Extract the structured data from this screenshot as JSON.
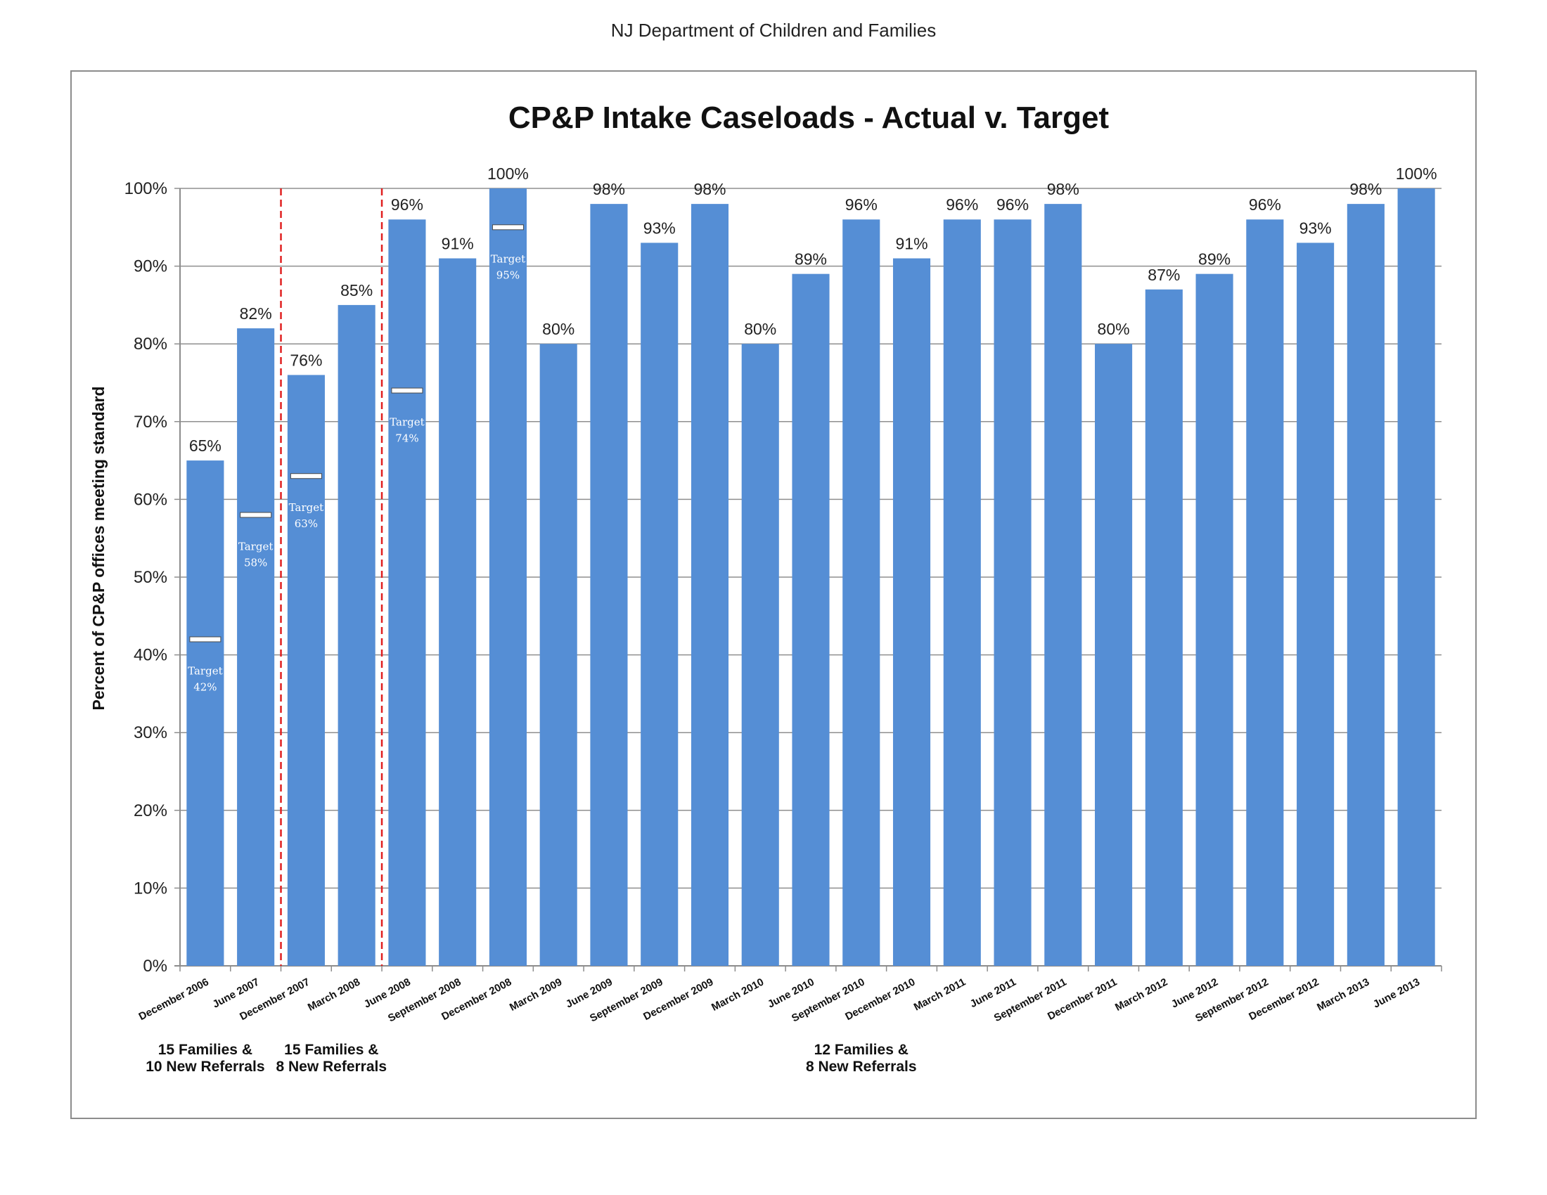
{
  "header": {
    "text": "NJ Department of Children and Families"
  },
  "chart_data": {
    "type": "bar",
    "title": "CP&P Intake Caseloads - Actual v. Target",
    "xlabel": "",
    "ylabel": "Percent of CP&P offices meeting standard",
    "ylim": [
      0,
      100
    ],
    "yticks": [
      "0%",
      "10%",
      "20%",
      "30%",
      "40%",
      "50%",
      "60%",
      "70%",
      "80%",
      "90%",
      "100%"
    ],
    "grid": "horizontal",
    "bar_color": "#558ed5",
    "target_marker_color": "#ffffff",
    "divider_color": "#e02020",
    "categories": [
      "December 2006",
      "June 2007",
      "December 2007",
      "March 2008",
      "June 2008",
      "September 2008",
      "December 2008",
      "March 2009",
      "June 2009",
      "September 2009",
      "December 2009",
      "March 2010",
      "June 2010",
      "September 2010",
      "December 2010",
      "March 2011",
      "June 2011",
      "September 2011",
      "December 2011",
      "March 2012",
      "June 2012",
      "September 2012",
      "December 2012",
      "March 2013",
      "June 2013"
    ],
    "values": [
      65,
      82,
      76,
      85,
      96,
      91,
      100,
      80,
      98,
      93,
      98,
      80,
      89,
      96,
      91,
      96,
      96,
      98,
      80,
      87,
      89,
      96,
      93,
      98,
      100
    ],
    "value_labels": [
      "65%",
      "82%",
      "76%",
      "85%",
      "96%",
      "91%",
      "100%",
      "80%",
      "98%",
      "93%",
      "98%",
      "80%",
      "89%",
      "96%",
      "91%",
      "96%",
      "96%",
      "98%",
      "80%",
      "87%",
      "89%",
      "96%",
      "93%",
      "98%",
      "100%"
    ],
    "targets": [
      {
        "index": 0,
        "value": 42,
        "word": "Target",
        "label": "42%"
      },
      {
        "index": 1,
        "value": 58,
        "word": "Target",
        "label": "58%"
      },
      {
        "index": 2,
        "value": 63,
        "word": "Target",
        "label": "63%"
      },
      {
        "index": 4,
        "value": 74,
        "word": "Target",
        "label": "74%"
      },
      {
        "index": 6,
        "value": 95,
        "word": "Target",
        "label": "95%"
      }
    ],
    "dividers_after_index": [
      1,
      3
    ],
    "groups": [
      {
        "lines": [
          "15 Families &",
          "10 New Referrals"
        ],
        "from_index": 0,
        "to_index": 0
      },
      {
        "lines": [
          "15 Families &",
          "8 New Referrals"
        ],
        "from_index": 2,
        "to_index": 3
      },
      {
        "lines": [
          "12 Families &",
          "8 New Referrals"
        ],
        "from_index": 13,
        "to_index": 13
      }
    ]
  }
}
